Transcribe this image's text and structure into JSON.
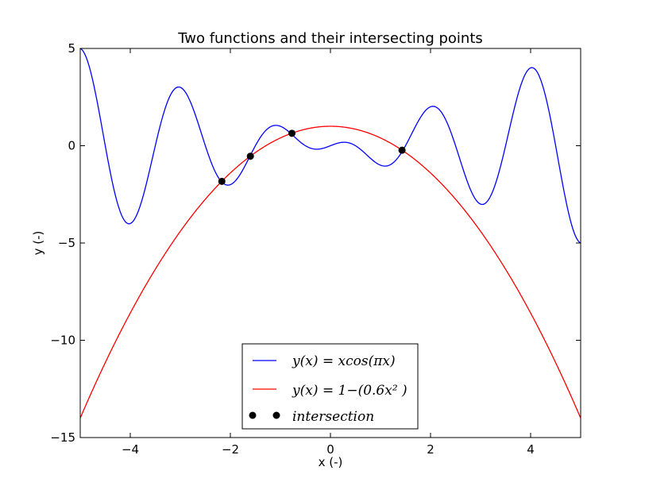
{
  "chart_data": {
    "type": "line",
    "title": "Two functions and their intersecting points",
    "xlabel": "x (-)",
    "ylabel": "y (-)",
    "xlim": [
      -5,
      5
    ],
    "ylim": [
      -15,
      5
    ],
    "xticks": [
      -4,
      -2,
      0,
      2,
      4
    ],
    "yticks": [
      5,
      0,
      -5,
      -10,
      -15
    ],
    "xtick_labels": [
      "−4",
      "−2",
      "0",
      "2",
      "4"
    ],
    "ytick_labels": [
      "5",
      "0",
      "−5",
      "−10",
      "−15"
    ],
    "grid": false,
    "legend_position": "bottom-center",
    "series": [
      {
        "name": "y(x) = xcos(πx)",
        "color": "#0000ff",
        "function": "x*cos(pi*x)"
      },
      {
        "name": "y(x) = 1−(0.6x² )",
        "color": "#ff0000",
        "function": "1-0.6*x^2"
      },
      {
        "name": "intersection",
        "style": "points",
        "color": "#000000",
        "points": [
          {
            "x": -2.17,
            "y": -1.83
          },
          {
            "x": -1.6,
            "y": -0.54
          },
          {
            "x": -0.77,
            "y": 0.64
          },
          {
            "x": 1.43,
            "y": -0.23
          }
        ]
      }
    ]
  }
}
